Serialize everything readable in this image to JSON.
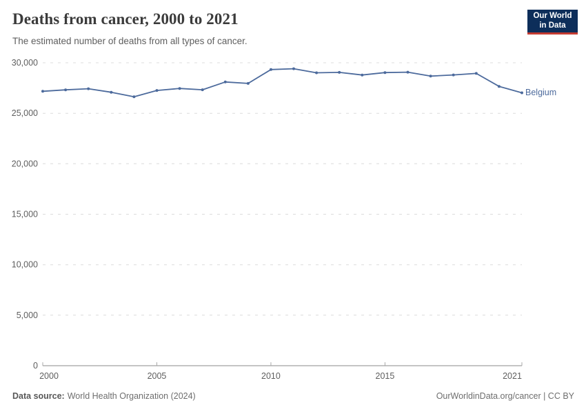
{
  "header": {
    "title": "Deaths from cancer, 2000 to 2021",
    "subtitle": "The estimated number of deaths from all types of cancer.",
    "logo": {
      "line1": "Our World",
      "line2": "in Data"
    }
  },
  "chart_data": {
    "type": "line",
    "title": "Deaths from cancer, 2000 to 2021",
    "subtitle": "The estimated number of deaths from all types of cancer.",
    "xlabel": "",
    "ylabel": "",
    "xlim": [
      2000,
      2021
    ],
    "ylim": [
      0,
      30000
    ],
    "grid": "horizontal-dashed",
    "legend_position": "end-of-line-right",
    "x": [
      2000,
      2001,
      2002,
      2003,
      2004,
      2005,
      2006,
      2007,
      2008,
      2009,
      2010,
      2011,
      2012,
      2013,
      2014,
      2015,
      2016,
      2017,
      2018,
      2019,
      2020,
      2021
    ],
    "series": [
      {
        "name": "Belgium",
        "color": "#4C6A9C",
        "values": [
          27180,
          27320,
          27430,
          27080,
          26640,
          27260,
          27460,
          27330,
          28100,
          27960,
          29330,
          29410,
          29010,
          29050,
          28790,
          29030,
          29070,
          28680,
          28800,
          28950,
          27660,
          27030
        ]
      }
    ],
    "yticks": [
      {
        "value": 0,
        "label": "0"
      },
      {
        "value": 5000,
        "label": "5,000"
      },
      {
        "value": 10000,
        "label": "10,000"
      },
      {
        "value": 15000,
        "label": "15,000"
      },
      {
        "value": 20000,
        "label": "20,000"
      },
      {
        "value": 25000,
        "label": "25,000"
      },
      {
        "value": 30000,
        "label": "30,000"
      }
    ],
    "xticks": [
      {
        "value": 2000,
        "label": "2000"
      },
      {
        "value": 2005,
        "label": "2005"
      },
      {
        "value": 2010,
        "label": "2010"
      },
      {
        "value": 2015,
        "label": "2015"
      },
      {
        "value": 2021,
        "label": "2021"
      }
    ]
  },
  "footer": {
    "source_label": "Data source:",
    "source_text": "World Health Organization (2024)",
    "link_text": "OurWorldinData.org/cancer | CC BY"
  },
  "colors": {
    "accent": "#4C6A9C",
    "logo_bg": "#0d2e5a",
    "logo_stripe": "#c43b31",
    "grid": "#dcdcdc",
    "axis_line": "#8a8a8a",
    "tick_mark": "#a8a8a8",
    "tick_label": "#5e5e5e"
  }
}
